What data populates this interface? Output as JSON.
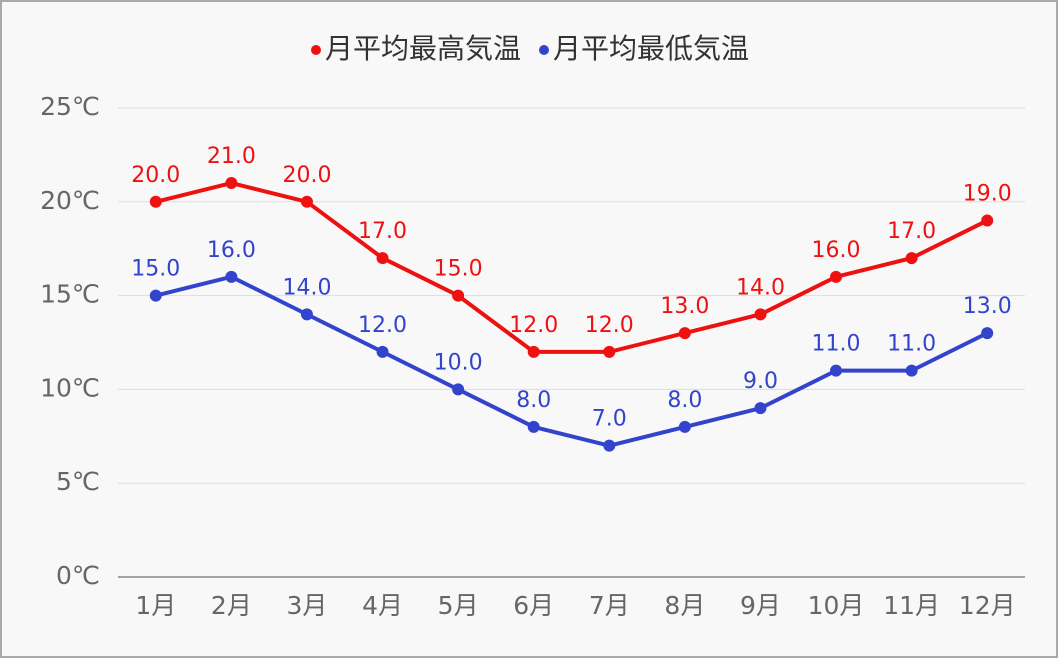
{
  "chart_data": {
    "type": "line",
    "categories": [
      "1月",
      "2月",
      "3月",
      "4月",
      "5月",
      "6月",
      "7月",
      "8月",
      "9月",
      "10月",
      "11月",
      "12月"
    ],
    "series": [
      {
        "name": "月平均最高気温",
        "color": "#ee1111",
        "values": [
          20,
          21,
          20,
          17,
          15,
          12,
          12,
          13,
          14,
          16,
          17,
          19
        ],
        "value_labels": [
          "20.0",
          "21.0",
          "20.0",
          "17.0",
          "15.0",
          "12.0",
          "12.0",
          "13.0",
          "14.0",
          "16.0",
          "17.0",
          "19.0"
        ]
      },
      {
        "name": "月平均最低気温",
        "color": "#3344cc",
        "values": [
          15,
          16,
          14,
          12,
          10,
          8,
          7,
          8,
          9,
          11,
          11,
          13
        ],
        "value_labels": [
          "15.0",
          "16.0",
          "14.0",
          "12.0",
          "10.0",
          "8.0",
          "7.0",
          "8.0",
          "9.0",
          "11.0",
          "11.0",
          "13.0"
        ]
      }
    ],
    "ylim": [
      0,
      25
    ],
    "yticks": [
      {
        "value": 0,
        "label": "0℃"
      },
      {
        "value": 5,
        "label": "5℃"
      },
      {
        "value": 10,
        "label": "10℃"
      },
      {
        "value": 15,
        "label": "15℃"
      },
      {
        "value": 20,
        "label": "20℃"
      },
      {
        "value": 25,
        "label": "25℃"
      }
    ],
    "grid": true
  }
}
